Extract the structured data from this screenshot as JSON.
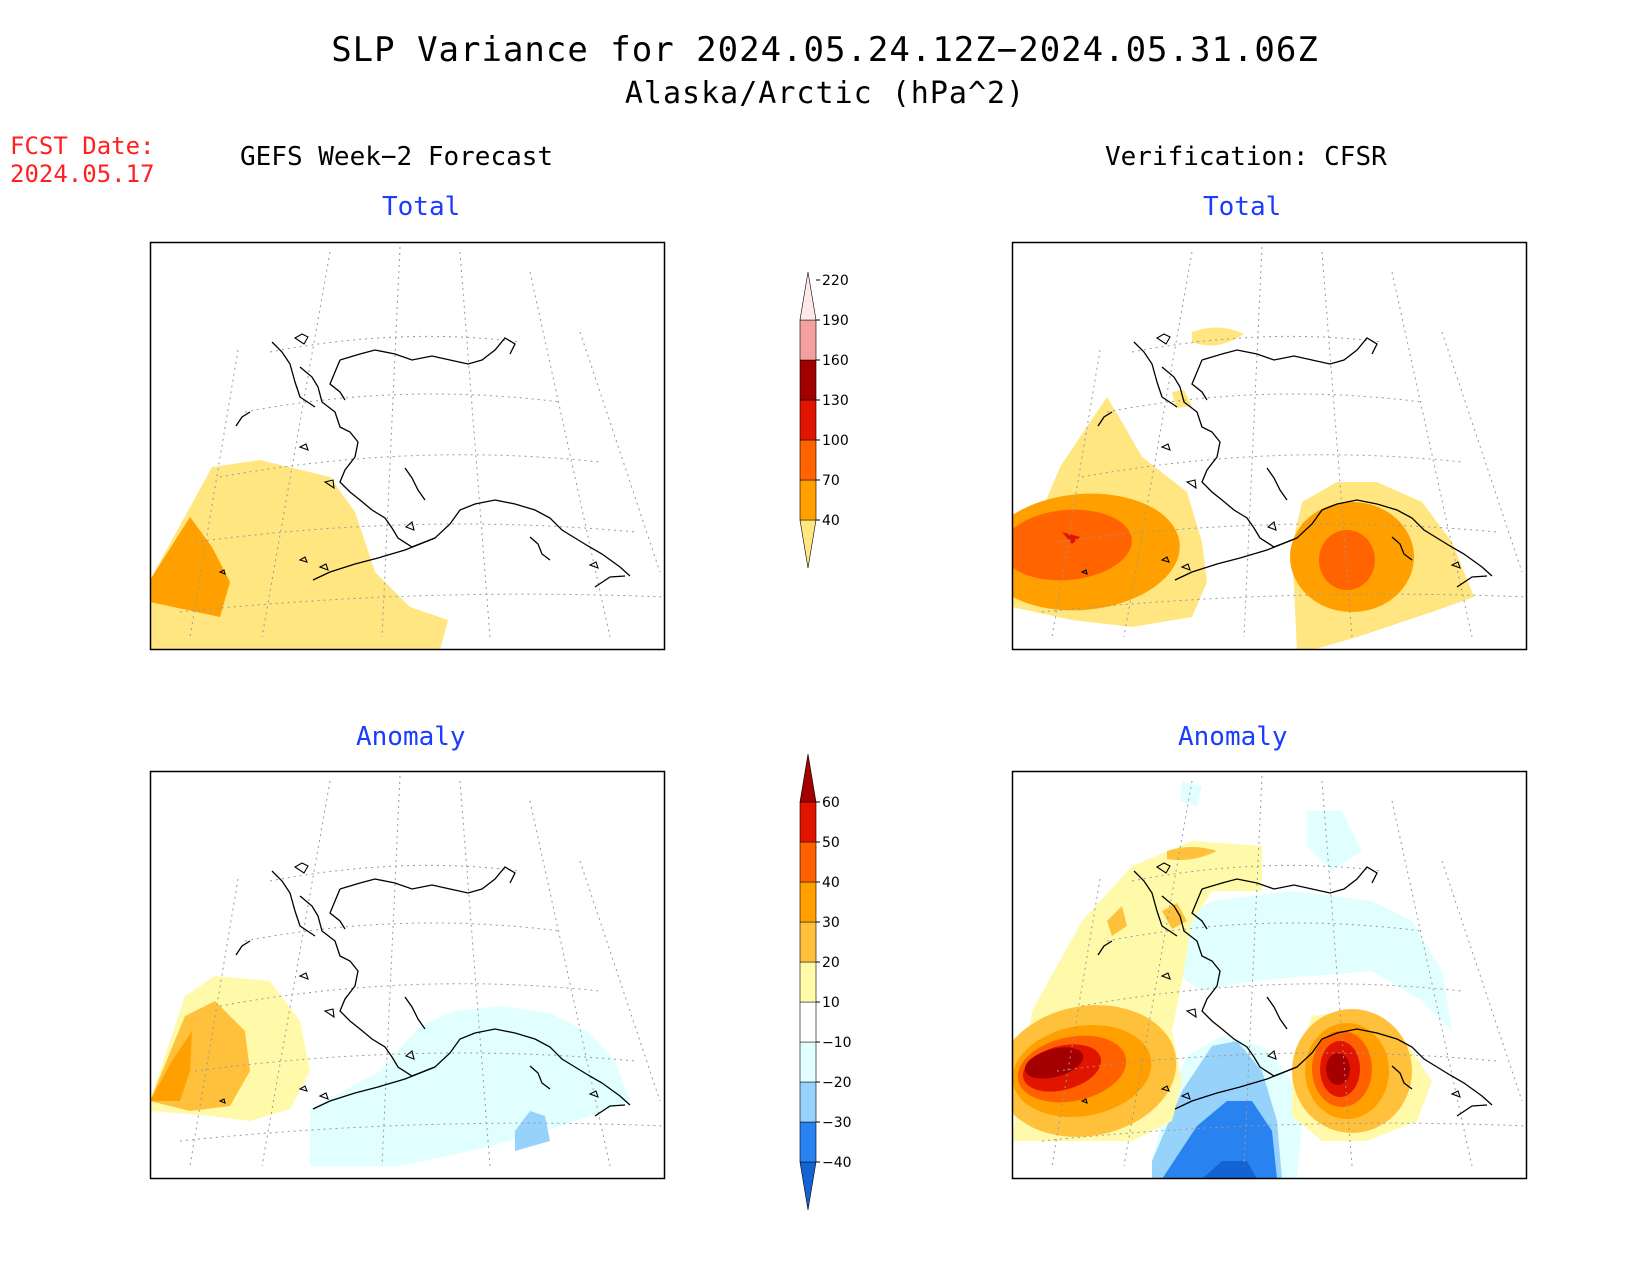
{
  "header": {
    "title": "SLP Variance for 2024.05.24.12Z−2024.05.31.06Z",
    "subtitle": "Alaska/Arctic (hPa^2)",
    "fcst_label": "FCST Date:",
    "fcst_date": "2024.05.17",
    "left_column": "GEFS Week−2 Forecast",
    "right_column": "Verification: CFSR"
  },
  "panels": {
    "gefs_total": "Total",
    "cfsr_total": "Total",
    "gefs_anomaly": "Anomaly",
    "cfsr_anomaly": "Anomaly"
  },
  "chart_data": {
    "type": "heatmap",
    "total_colorbar": {
      "levels": [
        "40",
        "70",
        "100",
        "130",
        "160",
        "190",
        "220"
      ],
      "colors": [
        "#ffe680",
        "#ffa000",
        "#ff6400",
        "#e01400",
        "#a00000",
        "#f2a0a0",
        "#ffe8e8"
      ]
    },
    "anomaly_colorbar": {
      "levels": [
        "−40",
        "−30",
        "−20",
        "−10",
        "10",
        "20",
        "30",
        "40",
        "50",
        "60"
      ],
      "colors": [
        "#1463d2",
        "#2882f0",
        "#96d2fa",
        "#e1ffff",
        "#ffffff",
        "#fffaaa",
        "#ffc03c",
        "#ffa000",
        "#ff6000",
        "#e11400",
        "#a50000"
      ]
    }
  }
}
